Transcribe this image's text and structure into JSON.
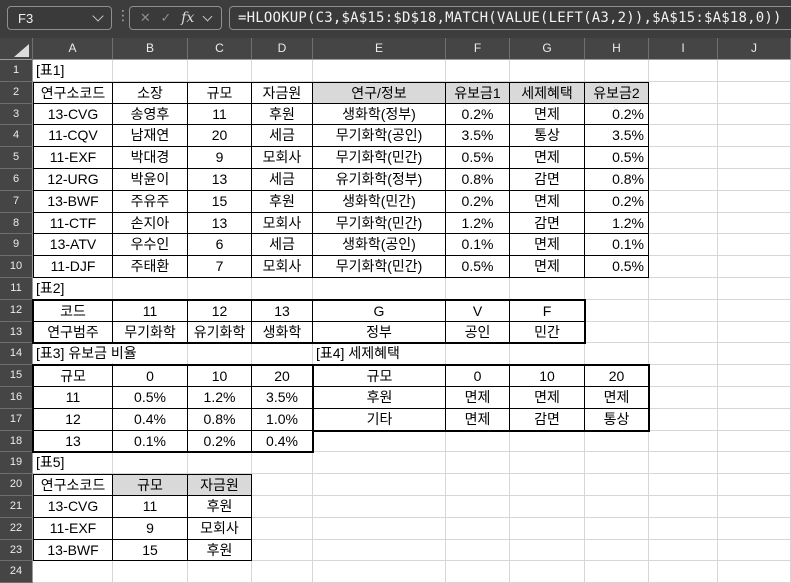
{
  "chrome": {
    "name_box": "F3",
    "formula": "=HLOOKUP(C3,$A$15:$D$18,MATCH(VALUE(LEFT(A3,2)),$A$15:$A$18,0))",
    "fx_label": "fx",
    "cancel_icon": "✕",
    "enter_icon": "✓",
    "separator_icon": "⋮"
  },
  "colors": {
    "chrome_bg": "#3d3d3d",
    "header_bg": "#454545",
    "gridline": "#d6d6d6",
    "table_border": "#000000",
    "header_fill_gray": "#d9d9d9",
    "cell_bg": "#ffffff"
  },
  "grid": {
    "column_headers": [
      "A",
      "B",
      "C",
      "D",
      "E",
      "F",
      "G",
      "H",
      "I",
      "J"
    ],
    "row_count": 24,
    "tables": [
      {
        "name": "표1",
        "range": "A2:H10",
        "thick": false
      },
      {
        "name": "표2",
        "range": "A12:G13",
        "thick": true
      },
      {
        "name": "표3",
        "range": "A15:D18",
        "thick": true
      },
      {
        "name": "표4",
        "range": "E15:H17",
        "thick": true
      },
      {
        "name": "표5",
        "range": "A20:C23",
        "thick": false
      }
    ],
    "cells": {
      "A1": {
        "t": "[표1]",
        "a": "l",
        "s": true
      },
      "A2": {
        "t": "연구소코드"
      },
      "B2": {
        "t": "소장"
      },
      "C2": {
        "t": "규모"
      },
      "D2": {
        "t": "자금원"
      },
      "E2": {
        "t": "연구/정보",
        "f": "g"
      },
      "F2": {
        "t": "유보금1",
        "f": "g"
      },
      "G2": {
        "t": "세제혜택",
        "f": "g"
      },
      "H2": {
        "t": "유보금2",
        "f": "g"
      },
      "A3": {
        "t": "13-CVG"
      },
      "B3": {
        "t": "송영후"
      },
      "C3": {
        "t": "11"
      },
      "D3": {
        "t": "후원"
      },
      "E3": {
        "t": "생화학(정부)"
      },
      "F3": {
        "t": "0.2%"
      },
      "G3": {
        "t": "면제"
      },
      "H3": {
        "t": "0.2%",
        "a": "r"
      },
      "A4": {
        "t": "11-CQV"
      },
      "B4": {
        "t": "남재연"
      },
      "C4": {
        "t": "20"
      },
      "D4": {
        "t": "세금"
      },
      "E4": {
        "t": "무기화학(공인)"
      },
      "F4": {
        "t": "3.5%"
      },
      "G4": {
        "t": "통상"
      },
      "H4": {
        "t": "3.5%",
        "a": "r"
      },
      "A5": {
        "t": "11-EXF"
      },
      "B5": {
        "t": "박대경"
      },
      "C5": {
        "t": "9"
      },
      "D5": {
        "t": "모회사"
      },
      "E5": {
        "t": "무기화학(민간)"
      },
      "F5": {
        "t": "0.5%"
      },
      "G5": {
        "t": "면제"
      },
      "H5": {
        "t": "0.5%",
        "a": "r"
      },
      "A6": {
        "t": "12-URG"
      },
      "B6": {
        "t": "박윤이"
      },
      "C6": {
        "t": "13"
      },
      "D6": {
        "t": "세금"
      },
      "E6": {
        "t": "유기화학(정부)"
      },
      "F6": {
        "t": "0.8%"
      },
      "G6": {
        "t": "감면"
      },
      "H6": {
        "t": "0.8%",
        "a": "r"
      },
      "A7": {
        "t": "13-BWF"
      },
      "B7": {
        "t": "주유주"
      },
      "C7": {
        "t": "15"
      },
      "D7": {
        "t": "후원"
      },
      "E7": {
        "t": "생화학(민간)"
      },
      "F7": {
        "t": "0.2%"
      },
      "G7": {
        "t": "면제"
      },
      "H7": {
        "t": "0.2%",
        "a": "r"
      },
      "A8": {
        "t": "11-CTF"
      },
      "B8": {
        "t": "손지아"
      },
      "C8": {
        "t": "13"
      },
      "D8": {
        "t": "모회사"
      },
      "E8": {
        "t": "무기화학(민간)"
      },
      "F8": {
        "t": "1.2%"
      },
      "G8": {
        "t": "감면"
      },
      "H8": {
        "t": "1.2%",
        "a": "r"
      },
      "A9": {
        "t": "13-ATV"
      },
      "B9": {
        "t": "우수인"
      },
      "C9": {
        "t": "6"
      },
      "D9": {
        "t": "세금"
      },
      "E9": {
        "t": "생화학(공인)"
      },
      "F9": {
        "t": "0.1%"
      },
      "G9": {
        "t": "면제"
      },
      "H9": {
        "t": "0.1%",
        "a": "r"
      },
      "A10": {
        "t": "11-DJF"
      },
      "B10": {
        "t": "주태환"
      },
      "C10": {
        "t": "7"
      },
      "D10": {
        "t": "모회사"
      },
      "E10": {
        "t": "무기화학(민간)"
      },
      "F10": {
        "t": "0.5%"
      },
      "G10": {
        "t": "면제"
      },
      "H10": {
        "t": "0.5%",
        "a": "r"
      },
      "A11": {
        "t": "[표2]",
        "a": "l",
        "s": true
      },
      "A12": {
        "t": "코드"
      },
      "B12": {
        "t": "11"
      },
      "C12": {
        "t": "12"
      },
      "D12": {
        "t": "13"
      },
      "E12": {
        "t": "G"
      },
      "F12": {
        "t": "V"
      },
      "G12": {
        "t": "F"
      },
      "A13": {
        "t": "연구범주"
      },
      "B13": {
        "t": "무기화학"
      },
      "C13": {
        "t": "유기화학"
      },
      "D13": {
        "t": "생화학"
      },
      "E13": {
        "t": "정부"
      },
      "F13": {
        "t": "공인"
      },
      "G13": {
        "t": "민간"
      },
      "A14": {
        "t": "[표3] 유보금 비율",
        "a": "l",
        "s": true
      },
      "E14": {
        "t": "[표4] 세제혜택",
        "a": "l",
        "s": true
      },
      "A15": {
        "t": "규모"
      },
      "B15": {
        "t": "0"
      },
      "C15": {
        "t": "10"
      },
      "D15": {
        "t": "20"
      },
      "E15": {
        "t": "규모"
      },
      "F15": {
        "t": "0"
      },
      "G15": {
        "t": "10"
      },
      "H15": {
        "t": "20"
      },
      "A16": {
        "t": "11"
      },
      "B16": {
        "t": "0.5%"
      },
      "C16": {
        "t": "1.2%"
      },
      "D16": {
        "t": "3.5%"
      },
      "E16": {
        "t": "후원"
      },
      "F16": {
        "t": "면제"
      },
      "G16": {
        "t": "면제"
      },
      "H16": {
        "t": "면제"
      },
      "A17": {
        "t": "12"
      },
      "B17": {
        "t": "0.4%"
      },
      "C17": {
        "t": "0.8%"
      },
      "D17": {
        "t": "1.0%"
      },
      "E17": {
        "t": "기타"
      },
      "F17": {
        "t": "면제"
      },
      "G17": {
        "t": "감면"
      },
      "H17": {
        "t": "통상"
      },
      "A18": {
        "t": "13"
      },
      "B18": {
        "t": "0.1%"
      },
      "C18": {
        "t": "0.2%"
      },
      "D18": {
        "t": "0.4%"
      },
      "A19": {
        "t": "[표5]",
        "a": "l",
        "s": true
      },
      "A20": {
        "t": "연구소코드"
      },
      "B20": {
        "t": "규모",
        "f": "g"
      },
      "C20": {
        "t": "자금원",
        "f": "g"
      },
      "A21": {
        "t": "13-CVG"
      },
      "B21": {
        "t": "11"
      },
      "C21": {
        "t": "후원"
      },
      "A22": {
        "t": "11-EXF"
      },
      "B22": {
        "t": "9"
      },
      "C22": {
        "t": "모회사"
      },
      "A23": {
        "t": "13-BWF"
      },
      "B23": {
        "t": "15"
      },
      "C23": {
        "t": "후원"
      }
    }
  }
}
